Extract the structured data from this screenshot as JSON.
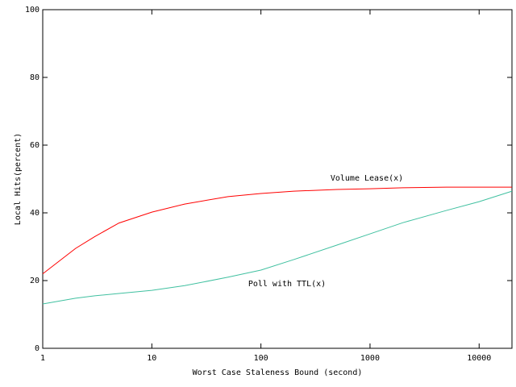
{
  "chart_data": {
    "type": "line",
    "xlabel": "Worst Case Staleness Bound (second)",
    "ylabel": "Local Hits(percent)",
    "x": [
      1,
      2,
      3,
      5,
      10,
      20,
      50,
      100,
      200,
      500,
      1000,
      2000,
      5000,
      10000,
      20000
    ],
    "series": [
      {
        "name": "Volume Lease(x)",
        "color": "#ff0000",
        "values": [
          22,
          29.5,
          33,
          37,
          40.2,
          42.6,
          44.8,
          45.7,
          46.4,
          46.9,
          47.1,
          47.4,
          47.6,
          47.6,
          47.6
        ]
      },
      {
        "name": "Poll with TTL(x)",
        "color": "#40c0a0",
        "values": [
          13.1,
          14.8,
          15.5,
          16.2,
          17.1,
          18.5,
          21,
          23.1,
          26.2,
          30.5,
          33.8,
          37.1,
          40.7,
          43.3,
          46.4
        ]
      }
    ],
    "xscale": "log",
    "xlim": [
      1,
      20000
    ],
    "xticks": [
      1,
      10,
      100,
      1000,
      10000
    ],
    "ylim": [
      0,
      100
    ],
    "yticks": [
      0,
      20,
      40,
      60,
      80,
      100
    ],
    "grid": false
  }
}
